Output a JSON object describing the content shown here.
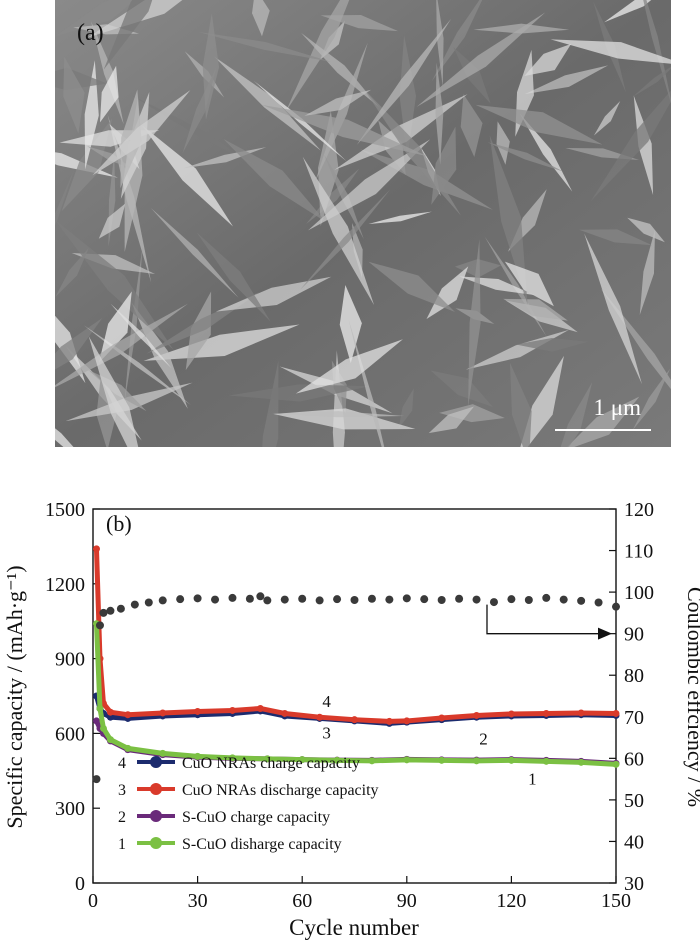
{
  "panel_a": {
    "label": "(a)",
    "scale_bar": "1 μm"
  },
  "chart_data": {
    "type": "line",
    "panel_label": "(b)",
    "xlabel": "Cycle number",
    "ylabel_left": "Specific capacity / (mAh·g⁻¹)",
    "ylabel_right": "Coulombic effciency / %",
    "xlim": [
      0,
      150
    ],
    "ylim_left": [
      0,
      1500
    ],
    "ylim_right": [
      30,
      120
    ],
    "x_ticks": [
      0,
      30,
      60,
      90,
      120,
      150
    ],
    "y_ticks_left": [
      0,
      300,
      600,
      900,
      1200,
      1500
    ],
    "y_ticks_right": [
      30,
      40,
      50,
      60,
      70,
      80,
      90,
      100,
      110,
      120
    ],
    "legend_position": "bottom-left",
    "series": [
      {
        "id": "4",
        "name": "CuO NRAs charge capacity",
        "color": "#1c2b6e",
        "axis": "left",
        "x": [
          1,
          2,
          3,
          5,
          10,
          20,
          30,
          40,
          48,
          55,
          65,
          75,
          85,
          90,
          100,
          110,
          120,
          130,
          140,
          150
        ],
        "y": [
          750,
          700,
          680,
          665,
          660,
          670,
          675,
          680,
          690,
          670,
          660,
          650,
          640,
          645,
          655,
          665,
          670,
          672,
          675,
          672
        ]
      },
      {
        "id": "3",
        "name": "CuO NRAs discharge capacity",
        "color": "#d93a2b",
        "axis": "left",
        "x": [
          1,
          2,
          3,
          5,
          10,
          20,
          30,
          40,
          48,
          55,
          65,
          75,
          85,
          90,
          100,
          110,
          120,
          130,
          140,
          150
        ],
        "y": [
          1340,
          900,
          720,
          685,
          675,
          682,
          688,
          692,
          700,
          680,
          665,
          655,
          648,
          650,
          662,
          672,
          678,
          680,
          682,
          680
        ]
      },
      {
        "id": "2",
        "name": "S-CuO charge capacity",
        "color": "#6a2a7a",
        "axis": "left",
        "x": [
          1,
          2,
          3,
          5,
          10,
          20,
          30,
          40,
          50,
          60,
          70,
          80,
          90,
          100,
          110,
          120,
          130,
          140,
          150
        ],
        "y": [
          650,
          620,
          600,
          570,
          535,
          515,
          505,
          500,
          498,
          495,
          493,
          492,
          496,
          494,
          493,
          495,
          492,
          488,
          480
        ]
      },
      {
        "id": "1",
        "name": "S-CuO disharge capacity",
        "color": "#7bc043",
        "axis": "left",
        "x": [
          1,
          2,
          3,
          5,
          10,
          20,
          30,
          40,
          50,
          60,
          70,
          80,
          90,
          100,
          110,
          120,
          130,
          140,
          150
        ],
        "y": [
          1040,
          700,
          620,
          575,
          540,
          520,
          508,
          502,
          498,
          495,
          492,
          490,
          494,
          492,
          490,
          492,
          488,
          484,
          476
        ]
      },
      {
        "id": "ce",
        "color": "#3a3a3a",
        "axis": "right",
        "x": [
          1,
          2,
          3,
          5,
          8,
          12,
          16,
          20,
          25,
          30,
          35,
          40,
          45,
          48,
          50,
          55,
          60,
          65,
          70,
          75,
          80,
          85,
          90,
          95,
          100,
          105,
          110,
          115,
          120,
          125,
          130,
          135,
          140,
          145,
          150
        ],
        "y": [
          55,
          92,
          95,
          95.5,
          96,
          97,
          97.5,
          98,
          98.3,
          98.5,
          98.2,
          98.6,
          98.4,
          99,
          98,
          98.2,
          98.4,
          98,
          98.3,
          98.1,
          98.4,
          98.2,
          98.5,
          98.3,
          98.1,
          98.4,
          98.2,
          97.6,
          98.3,
          98.1,
          98.6,
          98.2,
          97.9,
          97.5,
          96.5
        ]
      }
    ],
    "curve_labels": [
      {
        "text": "4",
        "x": 67,
        "y": 705
      },
      {
        "text": "3",
        "x": 67,
        "y": 580
      },
      {
        "text": "2",
        "x": 112,
        "y": 555
      },
      {
        "text": "1",
        "x": 126,
        "y": 395
      }
    ],
    "ce_arrow_text": ""
  }
}
